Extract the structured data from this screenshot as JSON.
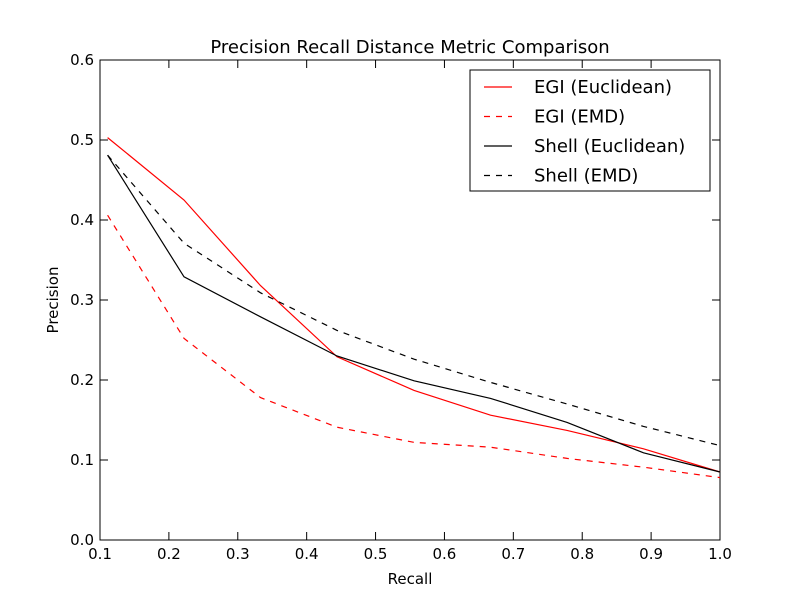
{
  "chart_data": {
    "type": "line",
    "title": "Precision Recall Distance Metric Comparison",
    "xlabel": "Recall",
    "ylabel": "Precision",
    "xlim": [
      0.1,
      1.0
    ],
    "ylim": [
      0.0,
      0.6
    ],
    "xticks": [
      "0.1",
      "0.2",
      "0.3",
      "0.4",
      "0.5",
      "0.6",
      "0.7",
      "0.8",
      "0.9",
      "1.0"
    ],
    "yticks": [
      "0.0",
      "0.1",
      "0.2",
      "0.3",
      "0.4",
      "0.5",
      "0.6"
    ],
    "grid": false,
    "legend_position": "top-right",
    "series": [
      {
        "name": "EGI (Euclidean)",
        "color": "#ff0000",
        "style": "solid",
        "x": [
          0.111,
          0.222,
          0.333,
          0.444,
          0.556,
          0.667,
          0.778,
          0.889,
          1.0
        ],
        "y": [
          0.503,
          0.425,
          0.318,
          0.229,
          0.187,
          0.156,
          0.137,
          0.114,
          0.085
        ]
      },
      {
        "name": "EGI (EMD)",
        "color": "#ff0000",
        "style": "dashed",
        "x": [
          0.111,
          0.222,
          0.333,
          0.444,
          0.556,
          0.667,
          0.778,
          0.889,
          1.0
        ],
        "y": [
          0.406,
          0.252,
          0.178,
          0.141,
          0.122,
          0.116,
          0.102,
          0.091,
          0.078
        ]
      },
      {
        "name": "Shell (Euclidean)",
        "color": "#000000",
        "style": "solid",
        "x": [
          0.111,
          0.222,
          0.333,
          0.444,
          0.556,
          0.667,
          0.778,
          0.889,
          1.0
        ],
        "y": [
          0.481,
          0.329,
          0.279,
          0.23,
          0.199,
          0.177,
          0.147,
          0.109,
          0.085
        ]
      },
      {
        "name": "Shell (EMD)",
        "color": "#000000",
        "style": "dashed",
        "x": [
          0.111,
          0.222,
          0.333,
          0.444,
          0.556,
          0.667,
          0.778,
          0.889,
          1.0
        ],
        "y": [
          0.481,
          0.371,
          0.309,
          0.262,
          0.226,
          0.197,
          0.17,
          0.142,
          0.118
        ]
      }
    ]
  }
}
